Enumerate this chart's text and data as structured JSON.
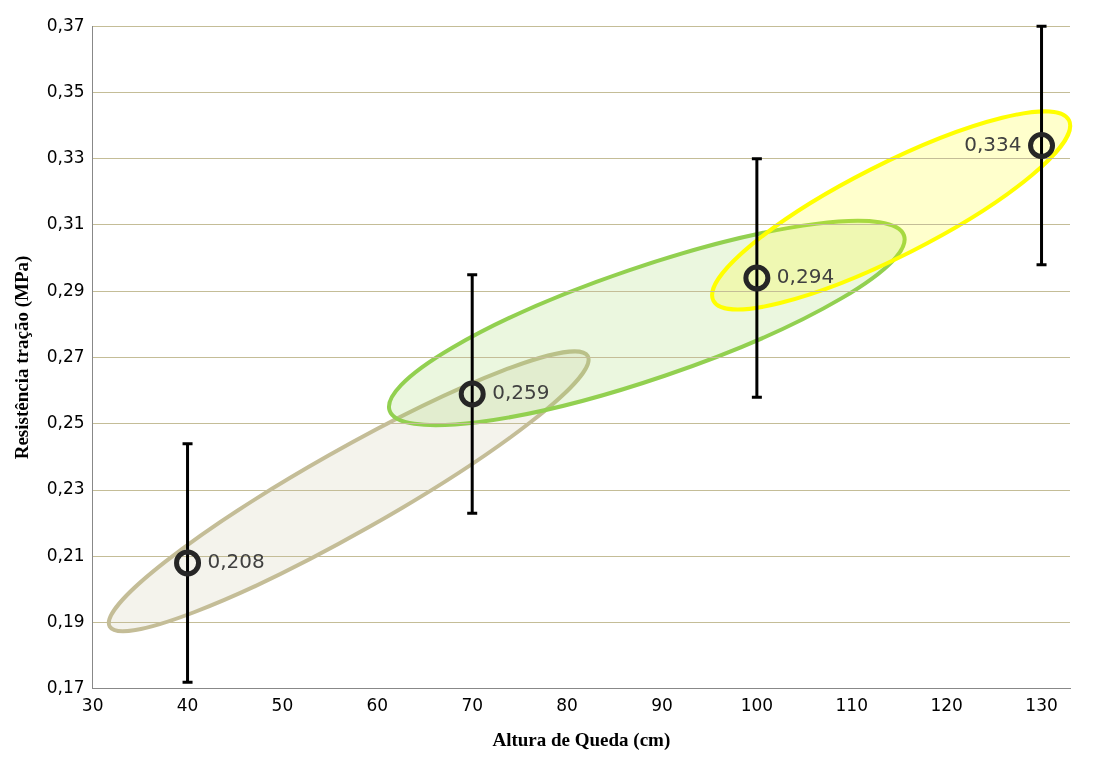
{
  "chart_data": {
    "type": "scatter",
    "xlabel": "Altura de Queda (cm)",
    "ylabel": "Resistência tração (MPa)",
    "x": [
      40,
      70,
      100,
      130
    ],
    "series": [
      {
        "color": "#262626",
        "values": [
          0.208,
          0.259,
          0.294,
          0.334
        ],
        "errors": [
          0.036,
          0.036,
          0.036,
          0.036
        ],
        "value_labels": [
          "0,208",
          "0,259",
          "0,294",
          "0,334"
        ]
      }
    ],
    "xlim": [
      30,
      133
    ],
    "xticks": [
      30,
      40,
      50,
      60,
      70,
      80,
      90,
      100,
      110,
      120,
      130
    ],
    "ylim": [
      0.17,
      0.37
    ],
    "yticks": [
      {
        "value": 0.17,
        "label": "0,17"
      },
      {
        "value": 0.19,
        "label": "0,19"
      },
      {
        "value": 0.21,
        "label": "0,21"
      },
      {
        "value": 0.23,
        "label": "0,23"
      },
      {
        "value": 0.25,
        "label": "0,25"
      },
      {
        "value": 0.27,
        "label": "0,27"
      },
      {
        "value": 0.29,
        "label": "0,29"
      },
      {
        "value": 0.31,
        "label": "0,31"
      },
      {
        "value": 0.33,
        "label": "0,33"
      },
      {
        "value": 0.35,
        "label": "0,35"
      },
      {
        "value": 0.37,
        "label": "0,37"
      }
    ],
    "grid": "y",
    "legend": false,
    "marker": "circle"
  }
}
